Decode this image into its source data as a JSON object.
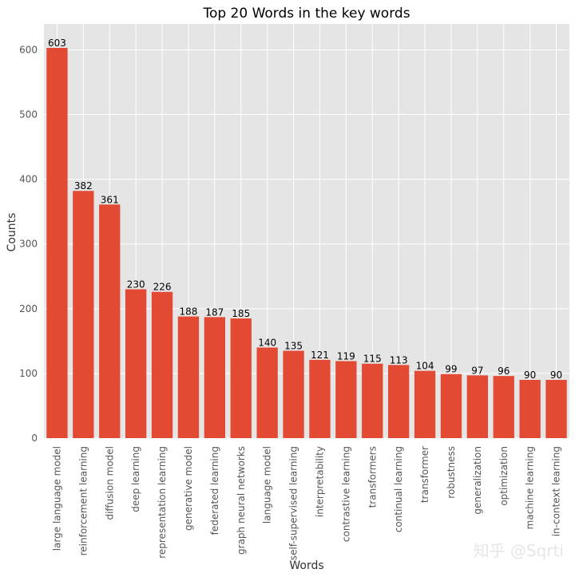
{
  "chart_data": {
    "type": "bar",
    "title": "Top 20 Words in the key words",
    "xlabel": "Words",
    "ylabel": "Counts",
    "ylim": [
      0,
      640
    ],
    "yticks": [
      0,
      100,
      200,
      300,
      400,
      500,
      600
    ],
    "grid": true,
    "categories": [
      "large language model",
      "reinforcement learning",
      "diffusion model",
      "deep learning",
      "representation learning",
      "generative model",
      "federated learning",
      "graph neural networks",
      "language model",
      "self-supervised learning",
      "interpretability",
      "contrastive learning",
      "transformers",
      "continual learning",
      "transformer",
      "robustness",
      "generalization",
      "optimization",
      "machine learning",
      "in-context learning"
    ],
    "values": [
      603,
      382,
      361,
      230,
      226,
      188,
      187,
      185,
      140,
      135,
      121,
      119,
      115,
      113,
      104,
      99,
      97,
      96,
      90,
      90
    ],
    "colors": {
      "bar": "#E24A33",
      "plot_bg": "#E5E5E5",
      "grid": "#FFFFFF"
    }
  },
  "watermark": "知乎 @Sqrti"
}
